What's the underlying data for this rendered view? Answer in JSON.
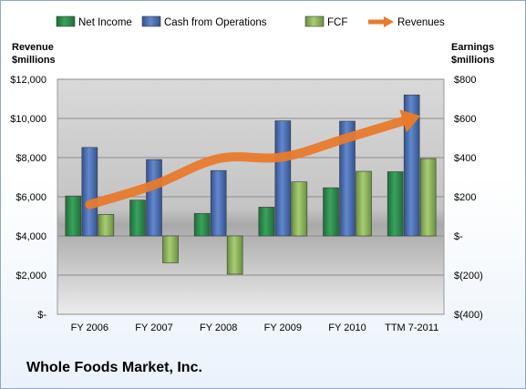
{
  "chart_data": {
    "type": "bar",
    "title": "Whole Foods Market, Inc.",
    "left_axis_label": [
      "Revenue",
      "$millions"
    ],
    "right_axis_label": [
      "Earnings",
      "$millions"
    ],
    "categories": [
      "FY 2006",
      "FY 2007",
      "FY 2008",
      "FY 2009",
      "FY 2010",
      "TTM 7-2011"
    ],
    "left_axis": {
      "min": 0,
      "max": 12000,
      "ticks": [
        "$-",
        "$2,000",
        "$4,000",
        "$6,000",
        "$8,000",
        "$10,000",
        "$12,000"
      ]
    },
    "right_axis": {
      "min": -400,
      "max": 800,
      "ticks": [
        "$(400)",
        "$(200)",
        "$-",
        "$200",
        "$400",
        "$600",
        "$800"
      ]
    },
    "series": [
      {
        "name": "Net Income",
        "axis": "right",
        "kind": "bar",
        "color": "#2e8b4e",
        "values": [
          204,
          183,
          115,
          147,
          246,
          328
        ]
      },
      {
        "name": "Cash from Operations",
        "axis": "right",
        "kind": "bar",
        "color": "#4a6fb5",
        "values": [
          452,
          390,
          334,
          588,
          586,
          720
        ]
      },
      {
        "name": "FCF",
        "axis": "right",
        "kind": "bar",
        "color": "#8fb85a",
        "values": [
          110,
          -137,
          -195,
          276,
          330,
          395
        ]
      },
      {
        "name": "Revenues",
        "axis": "left",
        "kind": "line",
        "color": "#e87a2c",
        "values": [
          5600,
          6600,
          7950,
          8030,
          9010,
          10000
        ]
      }
    ],
    "grid": true,
    "legend_position": "top"
  }
}
